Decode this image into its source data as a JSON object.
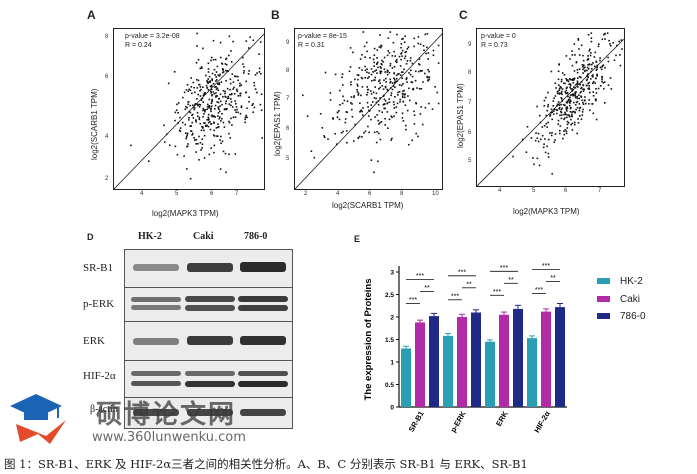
{
  "panels": {
    "A": {
      "letter": "A",
      "pvalue": "p-value = 3.2e-08",
      "r": "R = 0.24",
      "xlabel": "log2(MAPK3 TPM)",
      "ylabel": "log2(SCARB1 TPM)",
      "xticks": [
        "4",
        "5",
        "6",
        "7"
      ],
      "yticks": [
        "8",
        "6",
        "4",
        "2"
      ]
    },
    "B": {
      "letter": "B",
      "pvalue": "p-value = 8e-15",
      "r": "R = 0.31",
      "xlabel": "log2(SCARB1 TPM)",
      "ylabel": "log2(EPAS1 TPM)",
      "xticks": [
        "2",
        "4",
        "6",
        "8",
        "10"
      ],
      "yticks": [
        "9",
        "8",
        "7",
        "6",
        "5"
      ]
    },
    "C": {
      "letter": "C",
      "pvalue": "p-value = 0",
      "r": "R = 0.73",
      "xlabel": "log2(MAPK3 TPM)",
      "ylabel": "log2(EPAS1 TPM)",
      "xticks": [
        "4",
        "5",
        "6",
        "7"
      ],
      "yticks": [
        "9",
        "8",
        "7",
        "6",
        "5"
      ]
    }
  },
  "blot": {
    "letter": "D",
    "columns": [
      "HK-2",
      "Caki",
      "786-0"
    ],
    "rows": [
      "SR-B1",
      "p-ERK",
      "ERK",
      "HIF-2α",
      "β-actin"
    ]
  },
  "chart_data": {
    "type": "bar",
    "panel_letter": "E",
    "title": "",
    "ylabel": "The expression of Proteins",
    "xlabel": "",
    "ylim": [
      0,
      3
    ],
    "yticks": [
      0,
      0.5,
      1,
      1.5,
      2,
      2.5,
      3
    ],
    "categories": [
      "SR-B1",
      "p-ERK",
      "ERK",
      "HIF-2α"
    ],
    "series": [
      {
        "name": "HK-2",
        "values": [
          1.3,
          1.58,
          1.45,
          1.53
        ],
        "errors": [
          0.05,
          0.05,
          0.04,
          0.05
        ],
        "color": "#2a9fb3"
      },
      {
        "name": "Caki",
        "values": [
          1.88,
          2.0,
          2.05,
          2.12
        ],
        "errors": [
          0.05,
          0.06,
          0.06,
          0.06
        ],
        "color": "#b12aa8"
      },
      {
        "name": "786-0",
        "values": [
          2.02,
          2.1,
          2.18,
          2.22
        ],
        "errors": [
          0.06,
          0.06,
          0.08,
          0.08
        ],
        "color": "#1f2a86"
      }
    ],
    "significance": [
      "***",
      "**",
      "***"
    ],
    "legend_position": "right"
  },
  "watermark": {
    "title": "硕博论文网",
    "url": "www.360lunwenku.com",
    "colors": {
      "cap": "#1b63b5",
      "arrow": "#e34b2a"
    }
  },
  "caption": "图 1：SR-B1、ERK 及 HIF-2α三者之间的相关性分析。A、B、C 分别表示 SR-B1 与 ERK、SR-B1"
}
